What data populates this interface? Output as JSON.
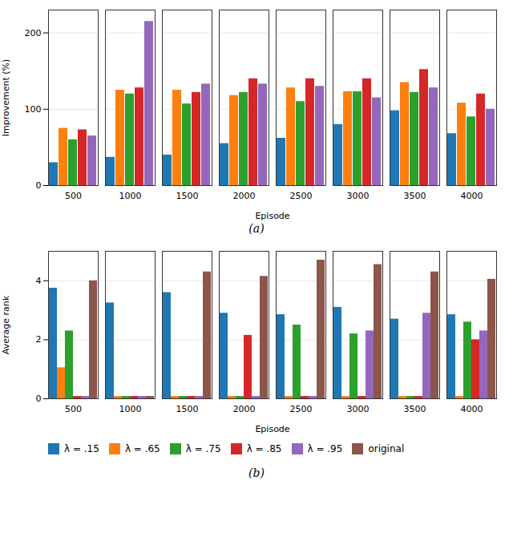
{
  "chart_data": [
    {
      "type": "bar",
      "caption": "(a)",
      "xlabel": "Episode",
      "ylabel": "Improvement (%)",
      "categories": [
        "500",
        "1000",
        "1500",
        "2000",
        "2500",
        "3000",
        "3500",
        "4000"
      ],
      "series": [
        {
          "name": "λ = .15",
          "color": "#1f77b4",
          "values": [
            30,
            37,
            40,
            55,
            62,
            80,
            98,
            68
          ]
        },
        {
          "name": "λ = .65",
          "color": "#ff7f0e",
          "values": [
            75,
            125,
            125,
            118,
            128,
            123,
            135,
            108
          ]
        },
        {
          "name": "λ = .75",
          "color": "#2ca02c",
          "values": [
            60,
            120,
            107,
            122,
            110,
            123,
            122,
            90
          ]
        },
        {
          "name": "λ = .85",
          "color": "#d62728",
          "values": [
            73,
            128,
            122,
            140,
            140,
            140,
            152,
            120
          ]
        },
        {
          "name": "λ = .95",
          "color": "#9467bd",
          "values": [
            65,
            215,
            133,
            133,
            130,
            115,
            128,
            100
          ]
        }
      ],
      "ylim": [
        0,
        230
      ],
      "yticks": [
        0,
        100,
        200
      ],
      "grid": true
    },
    {
      "type": "bar",
      "caption": "(b)",
      "xlabel": "Episode",
      "ylabel": "Average rank",
      "categories": [
        "500",
        "1000",
        "1500",
        "2000",
        "2500",
        "3000",
        "3500",
        "4000"
      ],
      "series": [
        {
          "name": "λ = .15",
          "color": "#1f77b4",
          "values": [
            3.75,
            3.25,
            3.6,
            2.9,
            2.85,
            3.1,
            2.7,
            2.85
          ]
        },
        {
          "name": "λ = .65",
          "color": "#ff7f0e",
          "values": [
            1.05,
            0.08,
            0.08,
            0.08,
            0.08,
            0.08,
            0.08,
            0.08
          ]
        },
        {
          "name": "λ = .75",
          "color": "#2ca02c",
          "values": [
            2.3,
            0.08,
            0.08,
            0.08,
            2.5,
            2.2,
            0.08,
            2.6
          ]
        },
        {
          "name": "λ = .85",
          "color": "#d62728",
          "values": [
            0.08,
            0.08,
            0.08,
            2.15,
            0.08,
            0.08,
            0.08,
            2.0
          ]
        },
        {
          "name": "λ = .95",
          "color": "#9467bd",
          "values": [
            0.08,
            0.08,
            0.08,
            0.08,
            0.08,
            2.3,
            2.9,
            2.3
          ]
        },
        {
          "name": "original",
          "color": "#8c564b",
          "values": [
            4.0,
            0.08,
            4.3,
            4.15,
            4.7,
            4.55,
            4.3,
            4.05
          ]
        }
      ],
      "ylim": [
        0,
        5.0
      ],
      "yticks": [
        0,
        2,
        4
      ],
      "grid": true,
      "legend": "lower left"
    }
  ]
}
